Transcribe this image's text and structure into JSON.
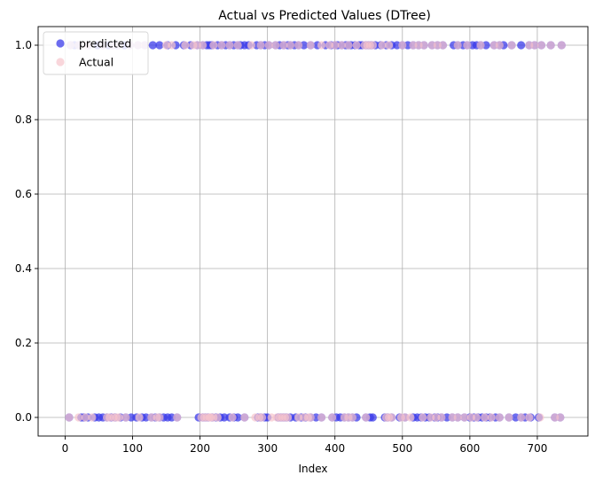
{
  "chart_data": {
    "type": "scatter",
    "title": "Actual vs Predicted Values (DTree)",
    "xlabel": "Index",
    "ylabel": "",
    "xlim": [
      -40,
      775
    ],
    "ylim": [
      -0.05,
      1.05
    ],
    "xticks": [
      0,
      100,
      200,
      300,
      400,
      500,
      600,
      700
    ],
    "yticks": [
      0.0,
      0.2,
      0.4,
      0.6,
      0.8,
      1.0
    ],
    "grid": true,
    "legend": "upper-left",
    "series": [
      {
        "name": "predicted",
        "color": "#3b3bea",
        "alpha": 0.75,
        "points": [
          [
            8,
            1
          ],
          [
            14,
            1
          ],
          [
            20,
            1
          ],
          [
            35,
            1
          ],
          [
            48,
            1
          ],
          [
            56,
            1
          ],
          [
            64,
            1
          ],
          [
            70,
            1
          ],
          [
            78,
            1
          ],
          [
            88,
            1
          ],
          [
            96,
            1
          ],
          [
            108,
            1
          ],
          [
            118,
            1
          ],
          [
            130,
            1
          ],
          [
            140,
            1
          ],
          [
            152,
            1
          ],
          [
            164,
            1
          ],
          [
            176,
            1
          ],
          [
            186,
            1
          ],
          [
            196,
            1
          ],
          [
            204,
            1
          ],
          [
            210,
            1
          ],
          [
            214,
            1
          ],
          [
            218,
            1
          ],
          [
            226,
            1
          ],
          [
            232,
            1
          ],
          [
            238,
            1
          ],
          [
            244,
            1
          ],
          [
            250,
            1
          ],
          [
            256,
            1
          ],
          [
            260,
            1
          ],
          [
            266,
            1
          ],
          [
            272,
            1
          ],
          [
            284,
            1
          ],
          [
            290,
            1
          ],
          [
            296,
            1
          ],
          [
            302,
            1
          ],
          [
            312,
            1
          ],
          [
            318,
            1
          ],
          [
            324,
            1
          ],
          [
            330,
            1
          ],
          [
            334,
            1
          ],
          [
            340,
            1
          ],
          [
            346,
            1
          ],
          [
            354,
            1
          ],
          [
            364,
            1
          ],
          [
            374,
            1
          ],
          [
            386,
            1
          ],
          [
            394,
            1
          ],
          [
            400,
            1
          ],
          [
            404,
            1
          ],
          [
            410,
            1
          ],
          [
            416,
            1
          ],
          [
            420,
            1
          ],
          [
            424,
            1
          ],
          [
            430,
            1
          ],
          [
            436,
            1
          ],
          [
            440,
            1
          ],
          [
            446,
            1
          ],
          [
            450,
            1
          ],
          [
            454,
            1
          ],
          [
            460,
            1
          ],
          [
            468,
            1
          ],
          [
            476,
            1
          ],
          [
            484,
            1
          ],
          [
            492,
            1
          ],
          [
            500,
            1
          ],
          [
            508,
            1
          ],
          [
            516,
            1
          ],
          [
            524,
            1
          ],
          [
            532,
            1
          ],
          [
            544,
            1
          ],
          [
            552,
            1
          ],
          [
            560,
            1
          ],
          [
            576,
            1
          ],
          [
            582,
            1
          ],
          [
            590,
            1
          ],
          [
            596,
            1
          ],
          [
            604,
            1
          ],
          [
            610,
            1
          ],
          [
            616,
            1
          ],
          [
            624,
            1
          ],
          [
            636,
            1
          ],
          [
            644,
            1
          ],
          [
            650,
            1
          ],
          [
            662,
            1
          ],
          [
            676,
            1
          ],
          [
            688,
            1
          ],
          [
            696,
            1
          ],
          [
            706,
            1
          ],
          [
            720,
            1
          ],
          [
            736,
            1
          ],
          [
            6,
            0
          ],
          [
            24,
            0
          ],
          [
            28,
            0
          ],
          [
            34,
            0
          ],
          [
            44,
            0
          ],
          [
            50,
            0
          ],
          [
            56,
            0
          ],
          [
            62,
            0
          ],
          [
            68,
            0
          ],
          [
            74,
            0
          ],
          [
            82,
            0
          ],
          [
            90,
            0
          ],
          [
            98,
            0
          ],
          [
            106,
            0
          ],
          [
            114,
            0
          ],
          [
            120,
            0
          ],
          [
            128,
            0
          ],
          [
            134,
            0
          ],
          [
            140,
            0
          ],
          [
            146,
            0
          ],
          [
            152,
            0
          ],
          [
            158,
            0
          ],
          [
            166,
            0
          ],
          [
            198,
            0
          ],
          [
            204,
            0
          ],
          [
            208,
            0
          ],
          [
            212,
            0
          ],
          [
            218,
            0
          ],
          [
            224,
            0
          ],
          [
            230,
            0
          ],
          [
            236,
            0
          ],
          [
            244,
            0
          ],
          [
            250,
            0
          ],
          [
            256,
            0
          ],
          [
            266,
            0
          ],
          [
            286,
            0
          ],
          [
            290,
            0
          ],
          [
            296,
            0
          ],
          [
            300,
            0
          ],
          [
            316,
            0
          ],
          [
            320,
            0
          ],
          [
            324,
            0
          ],
          [
            328,
            0
          ],
          [
            334,
            0
          ],
          [
            342,
            0
          ],
          [
            350,
            0
          ],
          [
            356,
            0
          ],
          [
            364,
            0
          ],
          [
            372,
            0
          ],
          [
            380,
            0
          ],
          [
            396,
            0
          ],
          [
            402,
            0
          ],
          [
            408,
            0
          ],
          [
            414,
            0
          ],
          [
            420,
            0
          ],
          [
            426,
            0
          ],
          [
            432,
            0
          ],
          [
            446,
            0
          ],
          [
            452,
            0
          ],
          [
            456,
            0
          ],
          [
            474,
            0
          ],
          [
            478,
            0
          ],
          [
            484,
            0
          ],
          [
            496,
            0
          ],
          [
            504,
            0
          ],
          [
            516,
            0
          ],
          [
            522,
            0
          ],
          [
            528,
            0
          ],
          [
            534,
            0
          ],
          [
            540,
            0
          ],
          [
            548,
            0
          ],
          [
            552,
            0
          ],
          [
            558,
            0
          ],
          [
            566,
            0
          ],
          [
            574,
            0
          ],
          [
            582,
            0
          ],
          [
            592,
            0
          ],
          [
            600,
            0
          ],
          [
            606,
            0
          ],
          [
            612,
            0
          ],
          [
            618,
            0
          ],
          [
            624,
            0
          ],
          [
            630,
            0
          ],
          [
            638,
            0
          ],
          [
            644,
            0
          ],
          [
            658,
            0
          ],
          [
            668,
            0
          ],
          [
            676,
            0
          ],
          [
            682,
            0
          ],
          [
            690,
            0
          ],
          [
            702,
            0
          ],
          [
            726,
            0
          ],
          [
            734,
            0
          ]
        ]
      },
      {
        "name": "Actual",
        "color": "#f7c4cc",
        "alpha": 0.7,
        "points": [
          [
            8,
            1
          ],
          [
            20,
            1
          ],
          [
            30,
            1
          ],
          [
            35,
            1
          ],
          [
            56,
            1
          ],
          [
            70,
            1
          ],
          [
            80,
            1
          ],
          [
            96,
            1
          ],
          [
            108,
            1
          ],
          [
            118,
            1
          ],
          [
            150,
            1
          ],
          [
            158,
            1
          ],
          [
            178,
            1
          ],
          [
            190,
            1
          ],
          [
            196,
            1
          ],
          [
            204,
            1
          ],
          [
            220,
            1
          ],
          [
            232,
            1
          ],
          [
            244,
            1
          ],
          [
            256,
            1
          ],
          [
            276,
            1
          ],
          [
            290,
            1
          ],
          [
            302,
            1
          ],
          [
            312,
            1
          ],
          [
            324,
            1
          ],
          [
            334,
            1
          ],
          [
            346,
            1
          ],
          [
            364,
            1
          ],
          [
            380,
            1
          ],
          [
            392,
            1
          ],
          [
            400,
            1
          ],
          [
            410,
            1
          ],
          [
            420,
            1
          ],
          [
            432,
            1
          ],
          [
            444,
            1
          ],
          [
            448,
            1
          ],
          [
            452,
            1
          ],
          [
            456,
            1
          ],
          [
            470,
            1
          ],
          [
            480,
            1
          ],
          [
            500,
            1
          ],
          [
            516,
            1
          ],
          [
            524,
            1
          ],
          [
            532,
            1
          ],
          [
            544,
            1
          ],
          [
            552,
            1
          ],
          [
            560,
            1
          ],
          [
            582,
            1
          ],
          [
            596,
            1
          ],
          [
            616,
            1
          ],
          [
            636,
            1
          ],
          [
            644,
            1
          ],
          [
            662,
            1
          ],
          [
            688,
            1
          ],
          [
            696,
            1
          ],
          [
            706,
            1
          ],
          [
            720,
            1
          ],
          [
            736,
            1
          ],
          [
            6,
            0
          ],
          [
            20,
            0
          ],
          [
            30,
            0
          ],
          [
            40,
            0
          ],
          [
            62,
            0
          ],
          [
            66,
            0
          ],
          [
            72,
            0
          ],
          [
            76,
            0
          ],
          [
            80,
            0
          ],
          [
            90,
            0
          ],
          [
            110,
            0
          ],
          [
            128,
            0
          ],
          [
            136,
            0
          ],
          [
            140,
            0
          ],
          [
            166,
            0
          ],
          [
            202,
            0
          ],
          [
            206,
            0
          ],
          [
            210,
            0
          ],
          [
            214,
            0
          ],
          [
            216,
            0
          ],
          [
            220,
            0
          ],
          [
            226,
            0
          ],
          [
            248,
            0
          ],
          [
            266,
            0
          ],
          [
            282,
            0
          ],
          [
            288,
            0
          ],
          [
            292,
            0
          ],
          [
            306,
            0
          ],
          [
            314,
            0
          ],
          [
            318,
            0
          ],
          [
            322,
            0
          ],
          [
            326,
            0
          ],
          [
            330,
            0
          ],
          [
            346,
            0
          ],
          [
            354,
            0
          ],
          [
            360,
            0
          ],
          [
            364,
            0
          ],
          [
            380,
            0
          ],
          [
            396,
            0
          ],
          [
            414,
            0
          ],
          [
            420,
            0
          ],
          [
            426,
            0
          ],
          [
            446,
            0
          ],
          [
            476,
            0
          ],
          [
            480,
            0
          ],
          [
            484,
            0
          ],
          [
            498,
            0
          ],
          [
            504,
            0
          ],
          [
            512,
            0
          ],
          [
            530,
            0
          ],
          [
            542,
            0
          ],
          [
            550,
            0
          ],
          [
            558,
            0
          ],
          [
            574,
            0
          ],
          [
            582,
            0
          ],
          [
            592,
            0
          ],
          [
            602,
            0
          ],
          [
            610,
            0
          ],
          [
            622,
            0
          ],
          [
            632,
            0
          ],
          [
            644,
            0
          ],
          [
            658,
            0
          ],
          [
            676,
            0
          ],
          [
            688,
            0
          ],
          [
            704,
            0
          ],
          [
            726,
            0
          ],
          [
            734,
            0
          ]
        ]
      }
    ]
  }
}
